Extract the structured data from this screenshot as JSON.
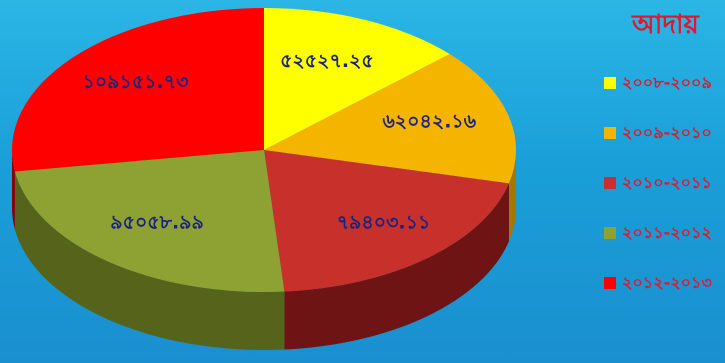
{
  "chart_data": {
    "type": "pie",
    "title": "আদায়",
    "legend_position": "right",
    "slices": [
      {
        "category": "২০০৮-২০০৯",
        "value_label": "৫২৫২৭.২৫",
        "value": 52527.25,
        "color": "#ffff00",
        "side_color": "#a8a000"
      },
      {
        "category": "২০০৯-২০১০",
        "value_label": "৬২০৪২.১৬",
        "value": 62042.16,
        "color": "#f4b400",
        "side_color": "#a67700"
      },
      {
        "category": "২০১০-২০১১",
        "value_label": "৭৯৪০৩.১১",
        "value": 79403.11,
        "color": "#c8302c",
        "side_color": "#6e1414"
      },
      {
        "category": "২০১১-২০১২",
        "value_label": "৯৫০৫৮.৯৯",
        "value": 95058.99,
        "color": "#8da232",
        "side_color": "#55641a"
      },
      {
        "category": "২০১২-২০১৩",
        "value_label": "১০৯১৫১.৭৩",
        "value": 109151.73,
        "color": "#ff0000",
        "side_color": "#8a0000"
      }
    ]
  }
}
